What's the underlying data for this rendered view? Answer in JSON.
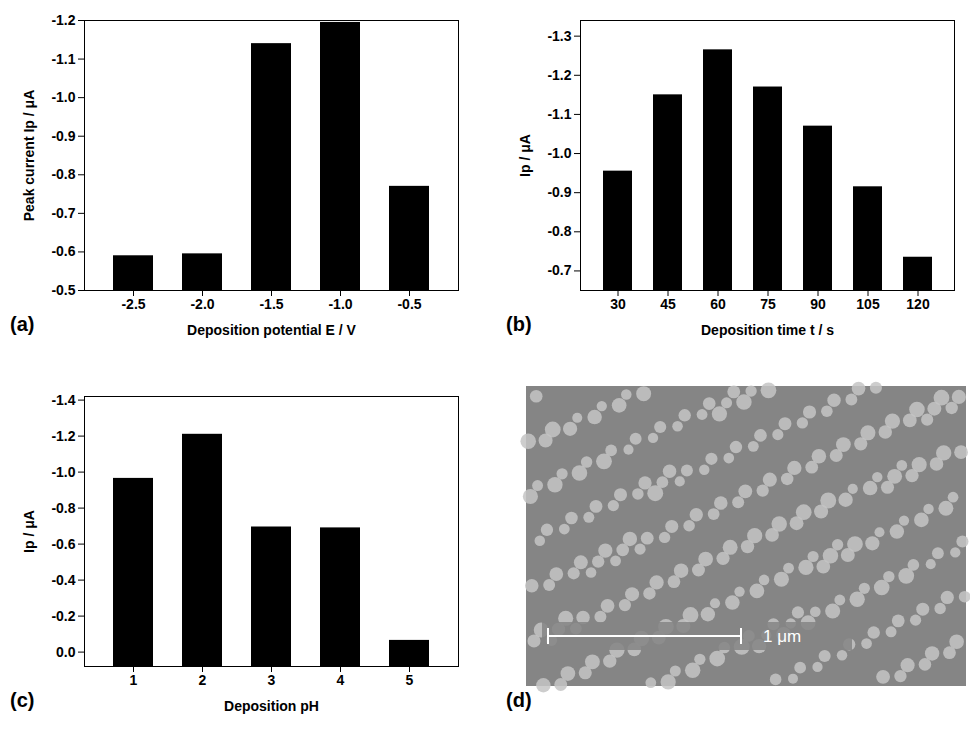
{
  "chart_data": [
    {
      "type": "bar",
      "panel_label": "(a)",
      "x_label": "Deposition potential E / V",
      "y_label": "Peak current Ip / μA",
      "categories": [
        "-2.5",
        "-2.0",
        "-1.5",
        "-1.0",
        "-0.5"
      ],
      "values": [
        -0.59,
        -0.595,
        -1.14,
        -1.195,
        -0.77
      ],
      "color": "#000000",
      "ylim": [
        -0.5,
        -1.2
      ],
      "yticks": [
        -0.5,
        -0.6,
        -0.7,
        -0.8,
        -0.9,
        {
          "value": -1,
          "label": "-1.0"
        },
        -1.1,
        -1.2
      ]
    },
    {
      "type": "bar",
      "panel_label": "(b)",
      "x_label": "Deposition time t / s",
      "y_label": "Ip / μA",
      "categories": [
        30,
        45,
        60,
        75,
        90,
        105,
        120
      ],
      "values": [
        -0.955,
        -1.15,
        -1.265,
        -1.17,
        -1.07,
        -0.915,
        -0.735
      ],
      "color": "#000000",
      "ylim": [
        -0.65,
        -1.34
      ],
      "yticks": [
        -0.7,
        -0.8,
        -0.9,
        {
          "value": -1,
          "label": "-1.0"
        },
        -1.1,
        -1.2,
        -1.3
      ]
    },
    {
      "type": "bar",
      "panel_label": "(c)",
      "x_label": "Deposition pH",
      "y_label": "Ip / μA",
      "categories": [
        1,
        2,
        3,
        4,
        5
      ],
      "values": [
        -0.965,
        -1.21,
        -0.695,
        -0.69,
        -0.065
      ],
      "color": "#000000",
      "ylim": [
        0.08,
        -1.42
      ],
      "yticks": [
        {
          "value": 0,
          "label": "0.0"
        },
        -0.2,
        -0.4,
        -0.6,
        -0.8,
        {
          "value": -1,
          "label": "-1.0"
        },
        -1.2,
        -1.4
      ]
    }
  ],
  "image": {
    "panel_label": "(d)",
    "scale_bar": "1 μm"
  }
}
